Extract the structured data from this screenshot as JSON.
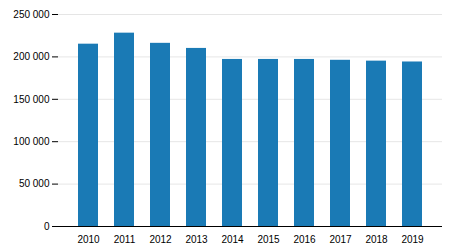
{
  "chart_data": {
    "type": "bar",
    "categories": [
      "2010",
      "2011",
      "2012",
      "2013",
      "2014",
      "2015",
      "2016",
      "2017",
      "2018",
      "2019"
    ],
    "values": [
      215000,
      228000,
      216000,
      210000,
      197000,
      197000,
      197000,
      196000,
      195000,
      194000
    ],
    "color": "#1a7ab5",
    "ylim": [
      0,
      250000
    ],
    "yticks": [
      0,
      {
        "value": 50000,
        "label": "50 000"
      },
      {
        "value": 100000,
        "label": "100 000"
      },
      {
        "value": 150000,
        "label": "150 000"
      },
      {
        "value": 200000,
        "label": "200 000"
      },
      {
        "value": 250000,
        "label": "250 000"
      }
    ],
    "grid": true
  }
}
